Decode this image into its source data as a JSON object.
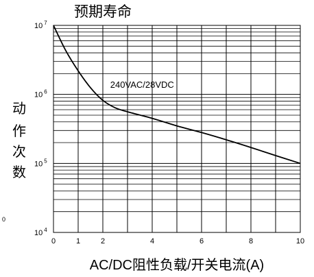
{
  "chart_data": {
    "type": "line",
    "title": "预期寿命",
    "xlabel": "AC/DC阻性负载/开关电流(A)",
    "ylabel": "动作次数",
    "xlim": [
      0,
      10
    ],
    "ylim": [
      10000,
      10000000
    ],
    "yscale": "log",
    "grid": true,
    "x_ticks": [
      "0",
      "2",
      "4",
      "6",
      "8",
      "10"
    ],
    "x_minor_ticks": [
      "1"
    ],
    "y_ticks": [
      {
        "base": "10",
        "exp": "4",
        "value": 10000
      },
      {
        "base": "10",
        "exp": "5",
        "value": 100000
      },
      {
        "base": "10",
        "exp": "6",
        "value": 1000000
      },
      {
        "base": "10",
        "exp": "7",
        "value": 10000000
      }
    ],
    "series": [
      {
        "name": "240VAC/28VDC",
        "x": [
          0,
          0.5,
          1,
          1.5,
          2,
          2.5,
          3,
          4,
          5,
          6,
          7,
          8,
          9,
          10
        ],
        "y": [
          10000000,
          4300000,
          2200000,
          1250000,
          820000,
          640000,
          560000,
          450000,
          350000,
          280000,
          220000,
          170000,
          130000,
          100000
        ]
      }
    ],
    "annotations": [
      {
        "text": "240VAC/28VDC",
        "x": 2.3,
        "y": 1250000
      }
    ],
    "stray_labels": [
      "0"
    ]
  }
}
